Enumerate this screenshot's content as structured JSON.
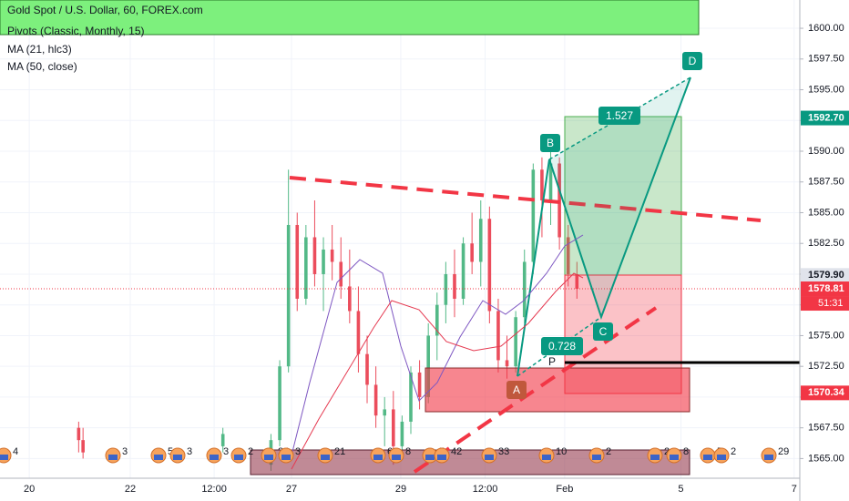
{
  "chart_data": {
    "type": "candlestick",
    "title": "Gold Spot / U.S. Dollar, 60, FOREX.com",
    "indicators": [
      "Pivots (Classic, Monthly, 15)",
      "MA (21, hlc3)",
      "MA (50, close)"
    ],
    "up_color": "#53b987",
    "down_color": "#eb4d5c",
    "x": [
      18,
      19,
      51,
      62,
      64,
      66,
      68,
      70,
      72,
      74,
      76,
      78,
      80,
      82,
      84,
      86,
      88,
      90,
      92,
      94,
      96,
      98,
      100,
      102,
      104,
      106,
      108,
      110,
      112,
      114,
      116,
      118,
      120,
      122,
      124,
      126,
      128,
      130,
      132
    ],
    "open": [
      1567.5,
      1566.5,
      1566,
      1564.5,
      1566.5,
      1572.5,
      1584,
      1578,
      1583,
      1580,
      1582,
      1581,
      1579,
      1577,
      1573.5,
      1571,
      1568.5,
      1569,
      1566,
      1568,
      1572,
      1570,
      1575,
      1577.5,
      1580,
      1578,
      1582.5,
      1581,
      1584.5,
      1577,
      1573,
      1572.5,
      1576.5,
      1581,
      1588.5,
      1586,
      1589,
      1583,
      1580
    ],
    "high": [
      1568,
      1567.5,
      1567.5,
      1567,
      1573,
      1588.5,
      1585,
      1584,
      1586,
      1583,
      1584,
      1583,
      1582,
      1579,
      1575,
      1572.5,
      1570,
      1570.5,
      1568.5,
      1572.5,
      1573,
      1576,
      1578.5,
      1581,
      1582,
      1583,
      1585,
      1586,
      1585.5,
      1578,
      1575,
      1577,
      1582,
      1589,
      1589.5,
      1590,
      1589.5,
      1584,
      1581
    ],
    "low": [
      1565.5,
      1565,
      1565.5,
      1564,
      1566,
      1572,
      1577,
      1577.5,
      1579,
      1577,
      1579.5,
      1578,
      1576,
      1572,
      1569.5,
      1567.5,
      1566,
      1564.5,
      1565.5,
      1567,
      1569,
      1569.5,
      1573,
      1576,
      1576.5,
      1577.5,
      1580,
      1579,
      1576,
      1572,
      1571.5,
      1572,
      1576,
      1580,
      1583,
      1584,
      1582,
      1579,
      1578
    ],
    "close": [
      1566.5,
      1565.5,
      1567,
      1566.5,
      1572.5,
      1584,
      1578,
      1583,
      1580,
      1582,
      1581,
      1579,
      1577,
      1573.5,
      1571,
      1568.5,
      1569,
      1566,
      1568,
      1572,
      1570,
      1575,
      1577.5,
      1580,
      1578,
      1582.5,
      1581,
      1584.5,
      1577,
      1573,
      1572.5,
      1576.5,
      1581,
      1588.5,
      1586,
      1589,
      1583,
      1580,
      1578.81
    ],
    "xlim": [
      0,
      183
    ],
    "xticks": [
      {
        "value": 6.7,
        "label": "20"
      },
      {
        "value": 29.8,
        "label": "22"
      },
      {
        "value": 49,
        "label": "12:00"
      },
      {
        "value": 66.7,
        "label": "27"
      },
      {
        "value": 91.7,
        "label": "29"
      },
      {
        "value": 111,
        "label": "12:00"
      },
      {
        "value": 129.2,
        "label": "Feb"
      },
      {
        "value": 155.8,
        "label": "5"
      },
      {
        "value": 181.7,
        "label": "7"
      }
    ],
    "ylim": [
      1563.4,
      1602.3
    ],
    "yticks": [
      {
        "value": 1565,
        "label": "1565.00"
      },
      {
        "value": 1567.5,
        "label": "1567.50"
      },
      {
        "value": 1570,
        "label": "1570.00"
      },
      {
        "value": 1572.5,
        "label": "1572.50"
      },
      {
        "value": 1575,
        "label": "1575.00"
      },
      {
        "value": 1577.5,
        "label": "1577.50"
      },
      {
        "value": 1580,
        "label": "1580.00"
      },
      {
        "value": 1582.5,
        "label": "1582.50"
      },
      {
        "value": 1585,
        "label": "1585.00"
      },
      {
        "value": 1587.5,
        "label": "1587.50"
      },
      {
        "value": 1590,
        "label": "1590.00"
      },
      {
        "value": 1592.5,
        "label": "1592.50"
      },
      {
        "value": 1595,
        "label": "1595.00"
      },
      {
        "value": 1597.5,
        "label": "1597.50"
      },
      {
        "value": 1600,
        "label": "1600.00"
      }
    ],
    "price_labels": [
      {
        "value": 1592.7,
        "label": "1592.70",
        "color": "#089981"
      },
      {
        "value": 1579.9,
        "label": "1579.90",
        "color": "#e0e3eb"
      },
      {
        "value": 1578.81,
        "label": "1578.81",
        "color": "#f23645"
      },
      {
        "value": 1570.34,
        "label": "1570.34",
        "color": "#f23645"
      }
    ],
    "countdown": "51:31",
    "pattern_labels": [
      "A",
      "B",
      "C",
      "D"
    ],
    "ratios": [
      "1.527",
      "0.728"
    ],
    "pivot_label": "P",
    "events": [
      "4",
      "3",
      "5",
      "3",
      "3",
      "2",
      "24",
      "3",
      "21",
      "6",
      "8",
      "5",
      "42",
      "33",
      "10",
      "2",
      "2",
      "8",
      "5",
      "2",
      "29"
    ]
  }
}
